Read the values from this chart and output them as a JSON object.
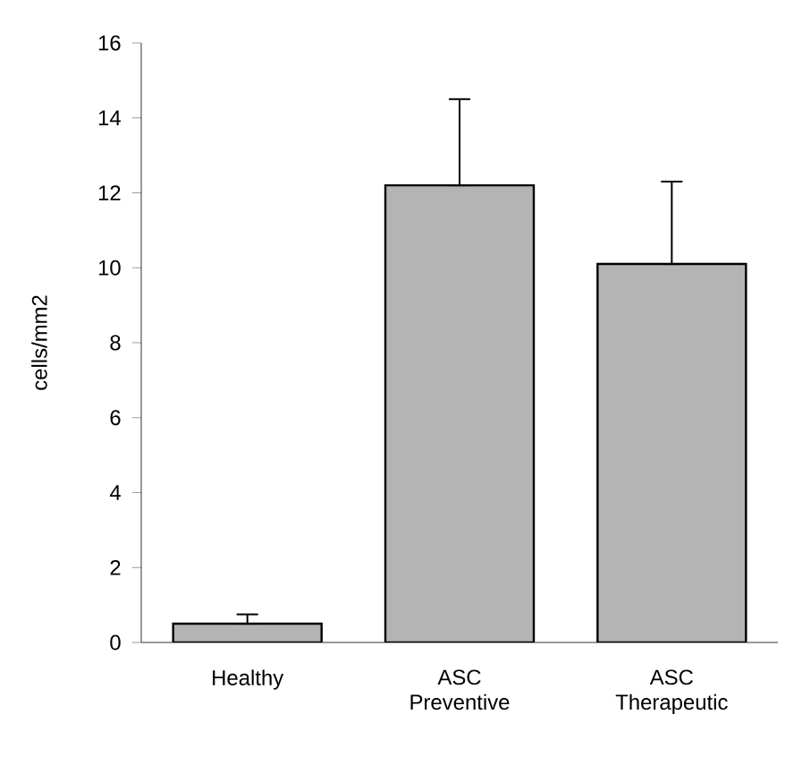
{
  "chart_data": {
    "type": "bar",
    "ylabel": "cells/mm2",
    "categories": [
      "Healthy",
      "ASC Preventive",
      "ASC Therapeutic"
    ],
    "values": [
      0.5,
      12.2,
      10.1
    ],
    "errors": [
      [
        0.5,
        0.75
      ],
      [
        12.2,
        14.5
      ],
      [
        10.1,
        12.3
      ]
    ],
    "color": "#b4b4b4",
    "ylim": [
      0,
      16
    ],
    "yticks": [
      0,
      2,
      4,
      6,
      8,
      10,
      12,
      14,
      16
    ]
  }
}
